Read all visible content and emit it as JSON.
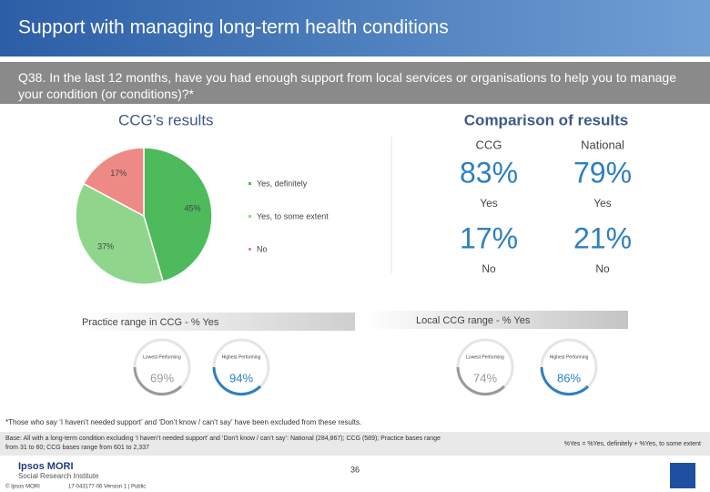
{
  "header": {
    "title": "Support with managing long-term health conditions",
    "question": "Q38. In the last 12 months, have you had enough support from local services or organisations to help you to manage your condition (or conditions)?*"
  },
  "chart_data": {
    "type": "pie",
    "title": "CCG’s results",
    "categories": [
      "Yes, definitely",
      "Yes, to some extent",
      "No"
    ],
    "values": [
      45,
      37,
      17
    ],
    "value_labels": [
      "45%",
      "37%",
      "17%"
    ],
    "colors": [
      "#4dba5c",
      "#8fd68c",
      "#ee8a86"
    ]
  },
  "comparison": {
    "title": "Comparison of results",
    "columns": [
      "CCG",
      "National"
    ],
    "rows": [
      {
        "label": "Yes",
        "values": [
          "83%",
          "79%"
        ]
      },
      {
        "label": "No",
        "values": [
          "17%",
          "21%"
        ]
      }
    ]
  },
  "practice_range": {
    "title": "Practice range in CCG - % Yes",
    "lowest_label": "Lowest Performing",
    "highest_label": "Highest Performing",
    "lowest": "69%",
    "highest": "94%"
  },
  "local_range": {
    "title": "Local CCG range - % Yes",
    "lowest_label": "Lowest Performing",
    "highest_label": "Highest Performing",
    "lowest": "74%",
    "highest": "86%"
  },
  "footnote": "*Those who say ‘I haven’t needed support’ and ‘Don’t know / can’t say’ have been excluded from these results.",
  "base": "Base: All with a long-term condition excluding ‘I haven’t needed support’ and ‘Don’t know / can’t say’: National (284,867); CCG (589); Practice bases range from 31 to 60; CCG bases range from 601 to 2,337",
  "formula": "%Yes = %Yes, definitely + %Yes, to some extent",
  "footer": {
    "brand": "Ipsos MORI",
    "sub": "Social Research Institute",
    "page": "36",
    "copyright": "© Ipsos MORI",
    "job": "17-043177-06 Version 1 | Public"
  }
}
